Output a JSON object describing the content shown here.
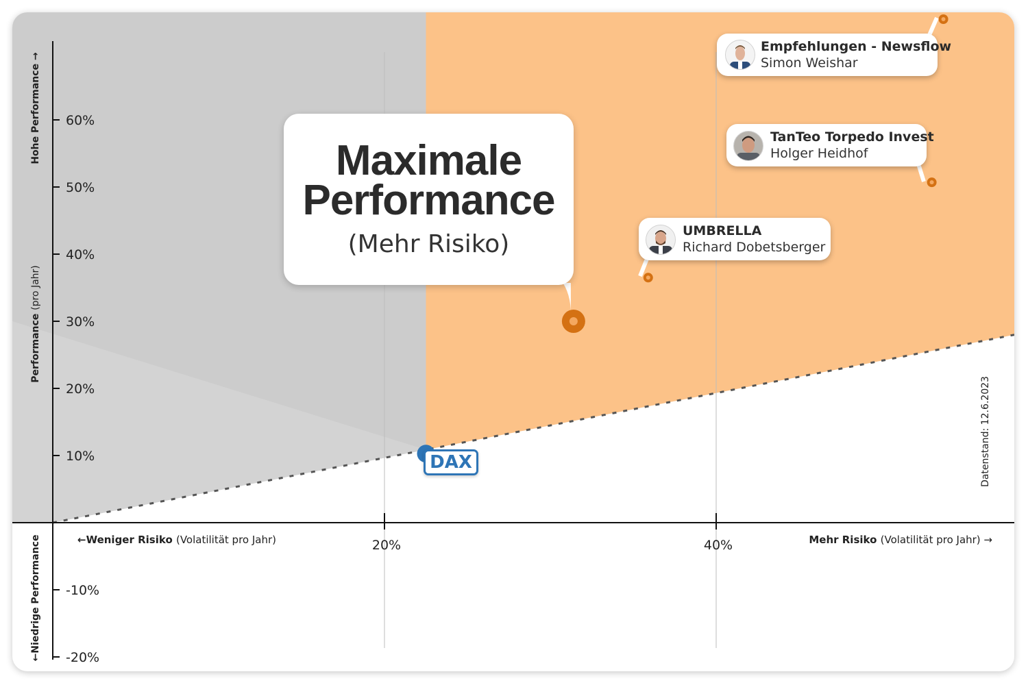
{
  "chart_data": {
    "type": "scatter",
    "title": "",
    "xlabel_left_bold": "Weniger Risiko",
    "xlabel_left_rest": "(Volatilität pro Jahr)",
    "xlabel_right_bold": "Mehr Risiko",
    "xlabel_right_rest": "(Volatilität pro Jahr)",
    "ylabel_bold": "Performance",
    "ylabel_rest": "(pro Jahr)",
    "ylabel_top": "Hohe Performance",
    "ylabel_bottom": "Niedrige Performance",
    "x_unit": "% volatility per year",
    "y_unit": "% performance per year",
    "xlim": [
      0,
      58
    ],
    "ylim": [
      -22,
      72
    ],
    "x_ticks": [
      {
        "value": 20,
        "label": "20%"
      },
      {
        "value": 40,
        "label": "40%"
      }
    ],
    "y_ticks": [
      {
        "value": 60,
        "label": "60%"
      },
      {
        "value": 50,
        "label": "50%"
      },
      {
        "value": 40,
        "label": "40%"
      },
      {
        "value": 30,
        "label": "30%"
      },
      {
        "value": 20,
        "label": "20%"
      },
      {
        "value": 10,
        "label": "10%"
      },
      {
        "value": -10,
        "label": "-10%"
      },
      {
        "value": -20,
        "label": "-20%"
      }
    ],
    "benchmark": {
      "name": "DAX",
      "x": 22.5,
      "y": 11.5
    },
    "reference_line": {
      "from": [
        0,
        0
      ],
      "to": [
        58,
        28
      ],
      "style": "dashed"
    },
    "region_color": "#fcc288",
    "low_risk_region_color": "#cccccc",
    "point_color": "#d47113",
    "points": [
      {
        "x": 31.4,
        "y": 30.0,
        "name": "Maximale Performance",
        "note": "(Mehr Risiko)"
      },
      {
        "x": 35.9,
        "y": 36.5,
        "name": "UMBRELLA",
        "manager": "Richard Dobetsberger"
      },
      {
        "x": 53.0,
        "y": 50.7,
        "name": "TanTeo Torpedo Invest",
        "manager": "Holger Heidhof"
      },
      {
        "x": 53.7,
        "y": 75.0,
        "name": "Empfehlungen - Newsflow",
        "manager": "Simon Weishar"
      }
    ],
    "date_note": "Datenstand: 12.6.2023"
  }
}
